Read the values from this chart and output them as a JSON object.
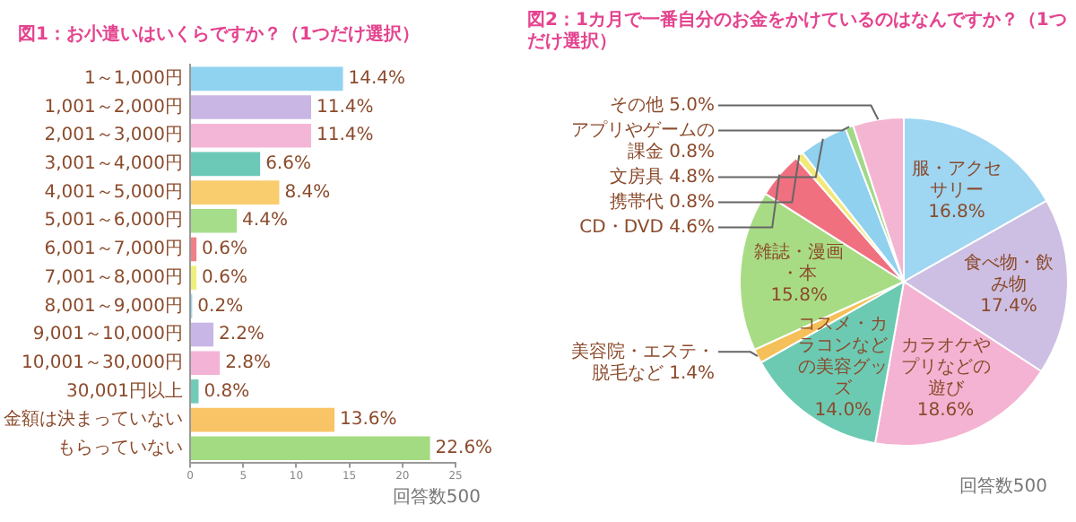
{
  "chart_data": [
    {
      "type": "bar",
      "orientation": "horizontal",
      "title": "図1：お小遣いはいくらですか？（1つだけ選択）",
      "categories": [
        "1～1,000円",
        "1,001～2,000円",
        "2,001～3,000円",
        "3,001～4,000円",
        "4,001～5,000円",
        "5,001～6,000円",
        "6,001～7,000円",
        "7,001～8,000円",
        "8,001～9,000円",
        "9,001～10,000円",
        "10,001～30,000円",
        "30,001円以上",
        "金額は決まっていない",
        "もらっていない"
      ],
      "values": [
        14.4,
        11.4,
        11.4,
        6.6,
        8.4,
        4.4,
        0.6,
        0.6,
        0.2,
        2.2,
        2.8,
        0.8,
        13.6,
        22.6
      ],
      "value_labels": [
        "14.4%",
        "11.4%",
        "11.4%",
        "6.6%",
        "8.4%",
        "4.4%",
        "0.6%",
        "0.6%",
        "0.2%",
        "2.2%",
        "2.8%",
        "0.8%",
        "13.6%",
        "22.6%"
      ],
      "colors": [
        "#8fd3f0",
        "#c9b6e4",
        "#f4b6d6",
        "#6cc9b8",
        "#f9cd6e",
        "#a6dd8a",
        "#f07f88",
        "#eef07a",
        "#9ad8ec",
        "#c7b6e6",
        "#f3b3d6",
        "#71cbb8",
        "#f9c466",
        "#a3db82"
      ],
      "xlim": [
        0,
        25
      ],
      "xticks": [
        0,
        5,
        10,
        15,
        20,
        25
      ],
      "tick_labels": "x",
      "grid": false,
      "annotations": [
        "回答数500"
      ]
    },
    {
      "type": "pie",
      "title": "図2：1カ月で一番自分のお金をかけているのはなんですか？（1つだけ選択）",
      "categories": [
        "服・アクセサリー",
        "食べ物・飲み物",
        "カラオケやプリなどの遊び",
        "コスメ・カラコンなどの美容グッズ",
        "美容院・エステ・脱毛など",
        "雑誌・漫画・本",
        "CD・DVD",
        "携帯代",
        "文房具",
        "アプリやゲームの課金",
        "その他"
      ],
      "values": [
        16.8,
        17.4,
        18.6,
        14.0,
        1.4,
        15.8,
        4.6,
        0.8,
        4.8,
        0.8,
        5.0
      ],
      "value_labels": [
        "16.8%",
        "17.4%",
        "18.6%",
        "14.0%",
        "1.4%",
        "15.8%",
        "4.6%",
        "0.8%",
        "4.8%",
        "0.8%",
        "5.0%"
      ],
      "colors": [
        "#9fd6f2",
        "#cdbfe3",
        "#f4b3d3",
        "#6ccab3",
        "#f5c05a",
        "#a8dc84",
        "#f07080",
        "#f3e97a",
        "#8fd1ef",
        "#a0d987",
        "#f3b5d2"
      ],
      "annotations": [
        "回答数500"
      ]
    }
  ]
}
